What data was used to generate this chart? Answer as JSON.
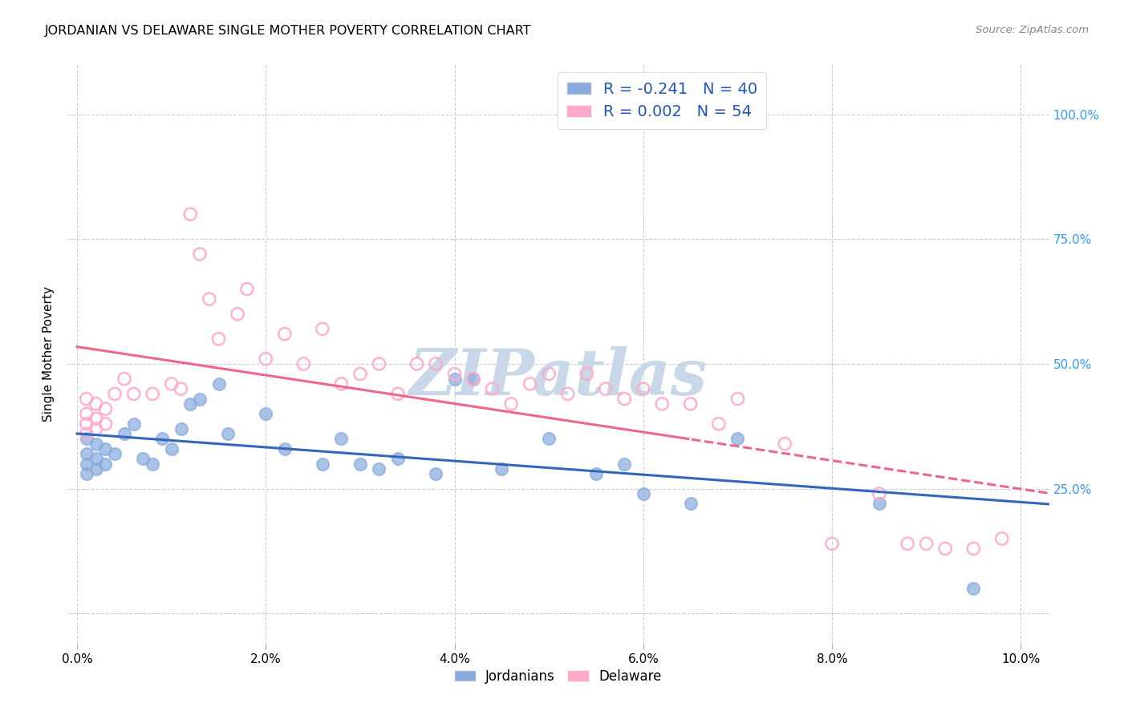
{
  "title": "JORDANIAN VS DELAWARE SINGLE MOTHER POVERTY CORRELATION CHART",
  "source": "Source: ZipAtlas.com",
  "ylabel": "Single Mother Poverty",
  "x_tick_positions": [
    0.0,
    0.02,
    0.04,
    0.06,
    0.08,
    0.1
  ],
  "x_tick_labels": [
    "0.0%",
    "2.0%",
    "4.0%",
    "6.0%",
    "8.0%",
    "10.0%"
  ],
  "y_tick_positions": [
    0.0,
    0.25,
    0.5,
    0.75,
    1.0
  ],
  "y_tick_labels_right": [
    "",
    "25.0%",
    "50.0%",
    "75.0%",
    "100.0%"
  ],
  "jordanians_R": "-0.241",
  "jordanians_N": "40",
  "delaware_R": "0.002",
  "delaware_N": "54",
  "blue_scatter_color": "#88AADD",
  "pink_scatter_color": "#FFAACC",
  "blue_line_color": "#3366BB",
  "pink_line_color": "#EE6688",
  "right_axis_color": "#3399FF",
  "legend_text_color": "#2255BB",
  "watermark_color": "#C8D8E8",
  "background_color": "#FFFFFF",
  "grid_color": "#CCCCDD",
  "jordanians_x": [
    0.001,
    0.001,
    0.001,
    0.001,
    0.002,
    0.002,
    0.002,
    0.003,
    0.003,
    0.004,
    0.005,
    0.006,
    0.007,
    0.008,
    0.009,
    0.01,
    0.011,
    0.012,
    0.013,
    0.015,
    0.016,
    0.02,
    0.022,
    0.026,
    0.028,
    0.03,
    0.032,
    0.034,
    0.038,
    0.04,
    0.042,
    0.045,
    0.05,
    0.055,
    0.058,
    0.06,
    0.065,
    0.07,
    0.085,
    0.095
  ],
  "jordanians_y": [
    0.35,
    0.32,
    0.3,
    0.28,
    0.34,
    0.31,
    0.29,
    0.33,
    0.3,
    0.32,
    0.36,
    0.38,
    0.31,
    0.3,
    0.35,
    0.33,
    0.37,
    0.42,
    0.43,
    0.46,
    0.36,
    0.4,
    0.33,
    0.3,
    0.35,
    0.3,
    0.29,
    0.31,
    0.28,
    0.47,
    0.47,
    0.29,
    0.35,
    0.28,
    0.3,
    0.24,
    0.22,
    0.35,
    0.22,
    0.05
  ],
  "delaware_x": [
    0.001,
    0.001,
    0.001,
    0.001,
    0.002,
    0.002,
    0.002,
    0.003,
    0.003,
    0.004,
    0.005,
    0.006,
    0.008,
    0.01,
    0.011,
    0.012,
    0.013,
    0.014,
    0.015,
    0.017,
    0.018,
    0.02,
    0.022,
    0.024,
    0.026,
    0.028,
    0.03,
    0.032,
    0.034,
    0.036,
    0.038,
    0.04,
    0.042,
    0.044,
    0.046,
    0.048,
    0.05,
    0.052,
    0.054,
    0.056,
    0.058,
    0.06,
    0.062,
    0.065,
    0.068,
    0.07,
    0.075,
    0.08,
    0.085,
    0.088,
    0.09,
    0.092,
    0.095,
    0.098
  ],
  "delaware_y": [
    0.43,
    0.4,
    0.38,
    0.36,
    0.42,
    0.39,
    0.37,
    0.41,
    0.38,
    0.44,
    0.47,
    0.44,
    0.44,
    0.46,
    0.45,
    0.8,
    0.72,
    0.63,
    0.55,
    0.6,
    0.65,
    0.51,
    0.56,
    0.5,
    0.57,
    0.46,
    0.48,
    0.5,
    0.44,
    0.5,
    0.5,
    0.48,
    0.47,
    0.45,
    0.42,
    0.46,
    0.48,
    0.44,
    0.48,
    0.45,
    0.43,
    0.45,
    0.42,
    0.42,
    0.38,
    0.43,
    0.34,
    0.14,
    0.24,
    0.14,
    0.14,
    0.13,
    0.13,
    0.15
  ]
}
